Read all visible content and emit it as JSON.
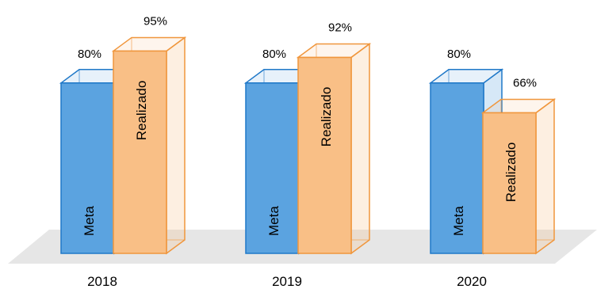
{
  "chart_data": {
    "type": "bar",
    "categories": [
      "2018",
      "2019",
      "2020"
    ],
    "series": [
      {
        "name": "Meta",
        "values": [
          80,
          80,
          80
        ],
        "labels": [
          "80%",
          "80%",
          "80%"
        ],
        "color": "#5ba3e0",
        "edge": "#1f78c8"
      },
      {
        "name": "Realizado",
        "values": [
          95,
          92,
          66
        ],
        "labels": [
          "95%",
          "92%",
          "66%"
        ],
        "color": "#f9bf86",
        "edge": "#f0963c"
      }
    ],
    "ylim": [
      0,
      100
    ],
    "grid": false,
    "legend": "none",
    "title": "",
    "xlabel": "",
    "ylabel": ""
  }
}
